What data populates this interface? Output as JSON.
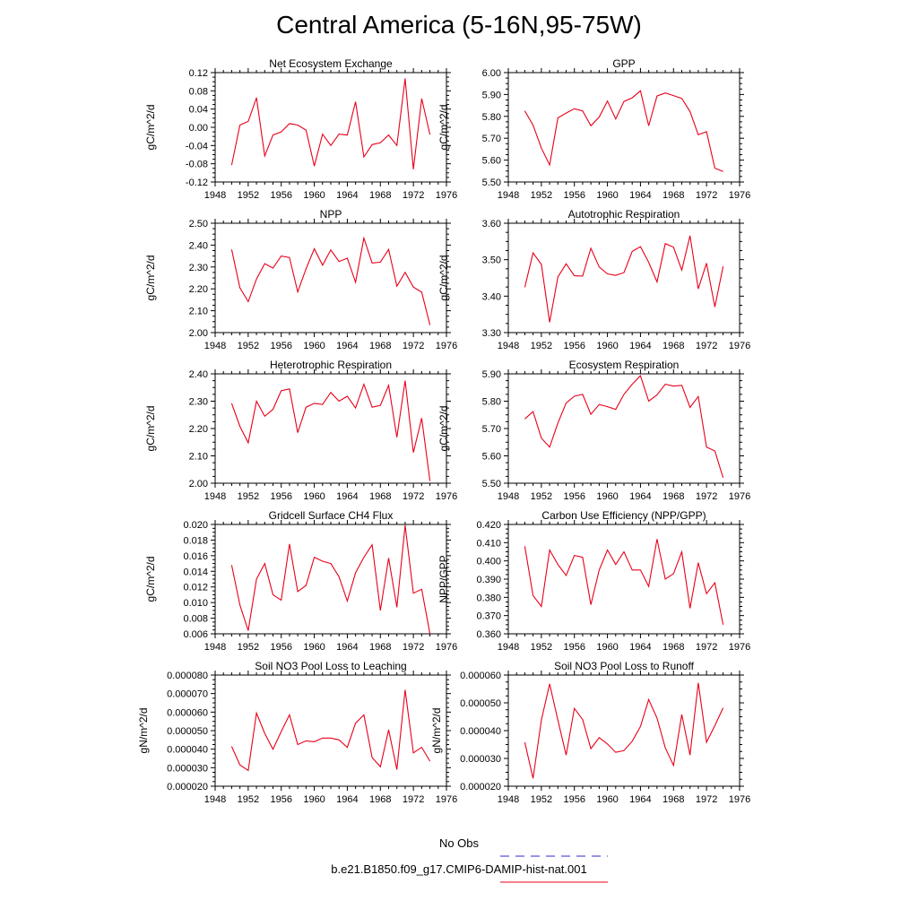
{
  "page": {
    "title": "Central America (5-16N,95-75W)"
  },
  "legend": {
    "entries": [
      {
        "label": "No Obs",
        "color": "#2a2ad0",
        "dash": "dashed"
      },
      {
        "label": "b.e21.B1850.f09_g17.CMIP6-DAMIP-hist-nat.001",
        "color": "#e8001a",
        "dash": "solid"
      }
    ]
  },
  "chart_data": [
    {
      "type": "line",
      "title": "Net Ecosystem Exchange",
      "ylabel": "gC/m^2/d",
      "xlim": [
        1948,
        1976
      ],
      "xticks": [
        "1948",
        "1952",
        "1956",
        "1960",
        "1964",
        "1968",
        "1972",
        "1976"
      ],
      "ylim": [
        -0.12,
        0.12
      ],
      "yticks": [
        "-0.12",
        "-0.08",
        "-0.04",
        "0.00",
        "0.04",
        "0.08",
        "0.12"
      ],
      "grid": false,
      "series": [
        {
          "color": "#e8001a",
          "x": [
            1950,
            1951,
            1952,
            1953,
            1954,
            1955,
            1956,
            1957,
            1958,
            1959,
            1960,
            1961,
            1962,
            1963,
            1964,
            1965,
            1966,
            1967,
            1968,
            1969,
            1970,
            1971,
            1972,
            1973,
            1974
          ],
          "y": [
            -0.083,
            0.005,
            0.013,
            0.065,
            -0.063,
            -0.017,
            -0.01,
            0.008,
            0.005,
            -0.006,
            -0.085,
            -0.015,
            -0.04,
            -0.015,
            -0.017,
            0.056,
            -0.065,
            -0.038,
            -0.034,
            -0.017,
            -0.04,
            0.107,
            -0.092,
            0.063,
            -0.016
          ]
        }
      ]
    },
    {
      "type": "line",
      "title": "GPP",
      "ylabel": "gC/m^2/d",
      "xlim": [
        1948,
        1976
      ],
      "xticks": [
        "1948",
        "1952",
        "1956",
        "1960",
        "1964",
        "1968",
        "1972",
        "1976"
      ],
      "ylim": [
        5.5,
        6.0
      ],
      "yticks": [
        "5.50",
        "5.60",
        "5.70",
        "5.80",
        "5.90",
        "6.00"
      ],
      "grid": false,
      "series": [
        {
          "color": "#e8001a",
          "x": [
            1950,
            1951,
            1952,
            1953,
            1954,
            1955,
            1956,
            1957,
            1958,
            1959,
            1960,
            1961,
            1962,
            1963,
            1964,
            1965,
            1966,
            1967,
            1968,
            1969,
            1970,
            1971,
            1972,
            1973,
            1974
          ],
          "y": [
            5.825,
            5.76,
            5.655,
            5.578,
            5.793,
            5.815,
            5.835,
            5.825,
            5.757,
            5.797,
            5.87,
            5.788,
            5.868,
            5.885,
            5.917,
            5.757,
            5.893,
            5.907,
            5.895,
            5.882,
            5.822,
            5.716,
            5.73,
            5.563,
            5.548
          ]
        }
      ]
    },
    {
      "type": "line",
      "title": "NPP",
      "ylabel": "gC/m^2/d",
      "xlim": [
        1948,
        1976
      ],
      "xticks": [
        "1948",
        "1952",
        "1956",
        "1960",
        "1964",
        "1968",
        "1972",
        "1976"
      ],
      "ylim": [
        2.0,
        2.5
      ],
      "yticks": [
        "2.00",
        "2.10",
        "2.20",
        "2.30",
        "2.40",
        "2.50"
      ],
      "grid": false,
      "series": [
        {
          "color": "#e8001a",
          "x": [
            1950,
            1951,
            1952,
            1953,
            1954,
            1955,
            1956,
            1957,
            1958,
            1959,
            1960,
            1961,
            1962,
            1963,
            1964,
            1965,
            1966,
            1967,
            1968,
            1969,
            1970,
            1971,
            1972,
            1973,
            1974
          ],
          "y": [
            2.38,
            2.205,
            2.142,
            2.245,
            2.315,
            2.295,
            2.35,
            2.343,
            2.186,
            2.292,
            2.383,
            2.308,
            2.378,
            2.325,
            2.34,
            2.23,
            2.432,
            2.318,
            2.322,
            2.38,
            2.212,
            2.275,
            2.208,
            2.185,
            2.035
          ]
        }
      ]
    },
    {
      "type": "line",
      "title": "Autotrophic Respiration",
      "ylabel": "gC/m^2/d",
      "xlim": [
        1948,
        1976
      ],
      "xticks": [
        "1948",
        "1952",
        "1956",
        "1960",
        "1964",
        "1968",
        "1972",
        "1976"
      ],
      "ylim": [
        3.3,
        3.65
      ],
      "yticks": [
        "3.30",
        "3.40",
        "3.50",
        "3.60"
      ],
      "grid": false,
      "series": [
        {
          "color": "#e8001a",
          "x": [
            1950,
            1951,
            1952,
            1953,
            1954,
            1955,
            1956,
            1957,
            1958,
            1959,
            1960,
            1961,
            1962,
            1963,
            1964,
            1965,
            1966,
            1967,
            1968,
            1969,
            1970,
            1971,
            1972,
            1973,
            1974
          ],
          "y": [
            3.445,
            3.555,
            3.518,
            3.333,
            3.478,
            3.52,
            3.482,
            3.481,
            3.57,
            3.51,
            3.488,
            3.483,
            3.492,
            3.56,
            3.575,
            3.525,
            3.462,
            3.585,
            3.573,
            3.5,
            3.61,
            3.44,
            3.522,
            3.382,
            3.512
          ]
        }
      ]
    },
    {
      "type": "line",
      "title": "Heterotrophic Respiration",
      "ylabel": "gC/m^2/d",
      "xlim": [
        1948,
        1976
      ],
      "xticks": [
        "1948",
        "1952",
        "1956",
        "1960",
        "1964",
        "1968",
        "1972",
        "1976"
      ],
      "ylim": [
        2.0,
        2.4
      ],
      "yticks": [
        "2.00",
        "2.10",
        "2.20",
        "2.30",
        "2.40"
      ],
      "grid": false,
      "series": [
        {
          "color": "#e8001a",
          "x": [
            1950,
            1951,
            1952,
            1953,
            1954,
            1955,
            1956,
            1957,
            1958,
            1959,
            1960,
            1961,
            1962,
            1963,
            1964,
            1965,
            1966,
            1967,
            1968,
            1969,
            1970,
            1971,
            1972,
            1973,
            1974
          ],
          "y": [
            2.292,
            2.208,
            2.148,
            2.3,
            2.245,
            2.27,
            2.338,
            2.345,
            2.185,
            2.278,
            2.292,
            2.288,
            2.332,
            2.3,
            2.318,
            2.275,
            2.362,
            2.278,
            2.285,
            2.358,
            2.168,
            2.375,
            2.112,
            2.238,
            2.008
          ]
        }
      ]
    },
    {
      "type": "line",
      "title": "Ecosystem Respiration",
      "ylabel": "gC/m^2/d",
      "xlim": [
        1948,
        1976
      ],
      "xticks": [
        "1948",
        "1952",
        "1956",
        "1960",
        "1964",
        "1968",
        "1972",
        "1976"
      ],
      "ylim": [
        5.5,
        5.9
      ],
      "yticks": [
        "5.50",
        "5.60",
        "5.70",
        "5.80",
        "5.90"
      ],
      "grid": false,
      "series": [
        {
          "color": "#e8001a",
          "x": [
            1950,
            1951,
            1952,
            1953,
            1954,
            1955,
            1956,
            1957,
            1958,
            1959,
            1960,
            1961,
            1962,
            1963,
            1964,
            1965,
            1966,
            1967,
            1968,
            1969,
            1970,
            1971,
            1972,
            1973,
            1974
          ],
          "y": [
            5.735,
            5.762,
            5.665,
            5.632,
            5.72,
            5.793,
            5.818,
            5.825,
            5.752,
            5.788,
            5.78,
            5.77,
            5.825,
            5.862,
            5.893,
            5.8,
            5.823,
            5.862,
            5.855,
            5.858,
            5.777,
            5.817,
            5.632,
            5.618,
            5.52
          ]
        }
      ]
    },
    {
      "type": "line",
      "title": "Gridcell Surface CH4 Flux",
      "ylabel": "gC/m^2/d",
      "xlim": [
        1948,
        1976
      ],
      "xticks": [
        "1948",
        "1952",
        "1956",
        "1960",
        "1964",
        "1968",
        "1972",
        "1976"
      ],
      "ylim": [
        0.006,
        0.02
      ],
      "yticks": [
        "0.006",
        "0.008",
        "0.010",
        "0.012",
        "0.014",
        "0.016",
        "0.018",
        "0.020"
      ],
      "grid": false,
      "series": [
        {
          "color": "#e8001a",
          "x": [
            1950,
            1951,
            1952,
            1953,
            1954,
            1955,
            1956,
            1957,
            1958,
            1959,
            1960,
            1961,
            1962,
            1963,
            1964,
            1965,
            1966,
            1967,
            1968,
            1969,
            1970,
            1971,
            1972,
            1973,
            1974
          ],
          "y": [
            0.0148,
            0.0097,
            0.0064,
            0.013,
            0.015,
            0.011,
            0.0103,
            0.0175,
            0.0114,
            0.0122,
            0.0158,
            0.0153,
            0.015,
            0.0133,
            0.0102,
            0.0138,
            0.0158,
            0.0174,
            0.009,
            0.0157,
            0.0094,
            0.0199,
            0.0112,
            0.0117,
            0.006
          ]
        }
      ]
    },
    {
      "type": "line",
      "title": "Carbon Use Efficiency (NPP/GPP)",
      "ylabel": "NPP/GPP",
      "xlim": [
        1948,
        1976
      ],
      "xticks": [
        "1948",
        "1952",
        "1956",
        "1960",
        "1964",
        "1968",
        "1972",
        "1976"
      ],
      "ylim": [
        0.36,
        0.42
      ],
      "yticks": [
        "0.360",
        "0.370",
        "0.380",
        "0.390",
        "0.400",
        "0.410",
        "0.420"
      ],
      "grid": false,
      "series": [
        {
          "color": "#e8001a",
          "x": [
            1950,
            1951,
            1952,
            1953,
            1954,
            1955,
            1956,
            1957,
            1958,
            1959,
            1960,
            1961,
            1962,
            1963,
            1964,
            1965,
            1966,
            1967,
            1968,
            1969,
            1970,
            1971,
            1972,
            1973,
            1974
          ],
          "y": [
            0.408,
            0.381,
            0.375,
            0.406,
            0.398,
            0.392,
            0.403,
            0.402,
            0.376,
            0.395,
            0.406,
            0.398,
            0.405,
            0.395,
            0.395,
            0.386,
            0.412,
            0.39,
            0.393,
            0.405,
            0.374,
            0.399,
            0.382,
            0.388,
            0.365
          ]
        }
      ]
    },
    {
      "type": "line",
      "title": "Soil NO3 Pool Loss to Leaching",
      "ylabel": "gN/m^2/d",
      "xlim": [
        1948,
        1976
      ],
      "xticks": [
        "1948",
        "1952",
        "1956",
        "1960",
        "1964",
        "1968",
        "1972",
        "1976"
      ],
      "ylim": [
        2e-05,
        8e-05
      ],
      "yticks": [
        "0.000020",
        "0.000030",
        "0.000040",
        "0.000050",
        "0.000060",
        "0.000070",
        "0.000080"
      ],
      "grid": false,
      "series": [
        {
          "color": "#e8001a",
          "x": [
            1950,
            1951,
            1952,
            1953,
            1954,
            1955,
            1956,
            1957,
            1958,
            1959,
            1960,
            1961,
            1962,
            1963,
            1964,
            1965,
            1966,
            1967,
            1968,
            1969,
            1970,
            1971,
            1972,
            1973,
            1974
          ],
          "y": [
            4.15e-05,
            3.15e-05,
            2.85e-05,
            5.95e-05,
            4.85e-05,
            4e-05,
            4.95e-05,
            5.85e-05,
            4.25e-05,
            4.45e-05,
            4.4e-05,
            4.6e-05,
            4.6e-05,
            4.5e-05,
            4.1e-05,
            5.4e-05,
            5.85e-05,
            3.55e-05,
            3.05e-05,
            5.05e-05,
            2.9e-05,
            7.2e-05,
            3.8e-05,
            4.1e-05,
            3.35e-05
          ]
        }
      ]
    },
    {
      "type": "line",
      "title": "Soil NO3 Pool Loss to Runoff",
      "ylabel": "gN/m^2/d",
      "xlim": [
        1948,
        1976
      ],
      "xticks": [
        "1948",
        "1952",
        "1956",
        "1960",
        "1964",
        "1968",
        "1972",
        "1976"
      ],
      "ylim": [
        2e-05,
        6e-05
      ],
      "yticks": [
        "0.000020",
        "0.000030",
        "0.000040",
        "0.000050",
        "0.000060"
      ],
      "grid": false,
      "series": [
        {
          "color": "#e8001a",
          "x": [
            1950,
            1951,
            1952,
            1953,
            1954,
            1955,
            1956,
            1957,
            1958,
            1959,
            1960,
            1961,
            1962,
            1963,
            1964,
            1965,
            1966,
            1967,
            1968,
            1969,
            1970,
            1971,
            1972,
            1973,
            1974
          ],
          "y": [
            3.58e-05,
            2.28e-05,
            4.38e-05,
            5.68e-05,
            4.38e-05,
            3.12e-05,
            4.8e-05,
            4.4e-05,
            3.35e-05,
            3.75e-05,
            3.52e-05,
            3.22e-05,
            3.28e-05,
            3.62e-05,
            4.15e-05,
            5.12e-05,
            4.45e-05,
            3.38e-05,
            2.75e-05,
            4.58e-05,
            3.12e-05,
            5.72e-05,
            3.58e-05,
            4.18e-05,
            4.82e-05
          ]
        }
      ]
    }
  ]
}
